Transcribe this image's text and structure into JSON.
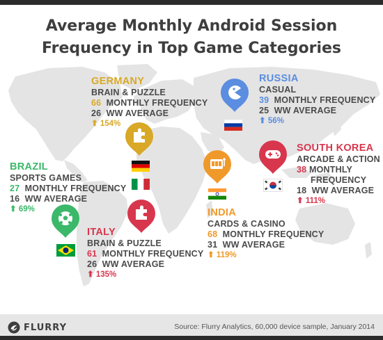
{
  "title_line1": "Average Monthly Android Session",
  "title_line2": "Frequency in Top Game Categories",
  "germany": {
    "country": "GERMANY",
    "category": "BRAIN & PUZZLE",
    "monthly": "66",
    "monthly_label": "MONTHLY FREQUENCY",
    "ww": "26",
    "ww_label": "WW AVERAGE",
    "growth": "154%",
    "color": "#d8a826"
  },
  "russia": {
    "country": "RUSSIA",
    "category": "CASUAL",
    "monthly": "39",
    "monthly_label": "MONTHLY FREQUENCY",
    "ww": "25",
    "ww_label": "WW AVERAGE",
    "growth": "56%",
    "color": "#5b8de0"
  },
  "south_korea": {
    "country": "SOUTH KOREA",
    "category": "ARCADE & ACTION",
    "monthly": "38",
    "monthly_label": "MONTHLY",
    "monthly_label2": "FREQUENCY",
    "ww": "18",
    "ww_label": "WW AVERAGE",
    "growth": "111%",
    "color": "#d8364d"
  },
  "brazil": {
    "country": "BRAZIL",
    "category": "SPORTS GAMES",
    "monthly": "27",
    "monthly_label": "MONTHLY FREQUENCY",
    "ww": "16",
    "ww_label": "WW AVERAGE",
    "growth": "69%",
    "color": "#3bb86a"
  },
  "india": {
    "country": "INDIA",
    "category": "CARDS & CASINO",
    "monthly": "68",
    "monthly_label": "MONTHLY FREQUENCY",
    "ww": "31",
    "ww_label": "WW AVERAGE",
    "growth": "119%",
    "color": "#f0992b"
  },
  "italy": {
    "country": "ITALY",
    "category": "BRAIN & PUZZLE",
    "monthly": "61",
    "monthly_label": "MONTHLY FREQUENCY",
    "ww": "26",
    "ww_label": "WW AVERAGE",
    "growth": "135%",
    "color": "#d8364d"
  },
  "footer": {
    "logo_text": "FLURRY",
    "source": "Source: Flurry Analytics, 60,000 device sample, January 2014"
  },
  "icons": [
    "puzzle-icon",
    "pacman-icon",
    "gamepad-icon",
    "soccer-ball-icon",
    "slot-machine-icon"
  ],
  "colors": {
    "map": "#e4e4e4",
    "text": "#4a4a4a",
    "title": "#3e3e3e",
    "bars": "#2b2b2b"
  }
}
